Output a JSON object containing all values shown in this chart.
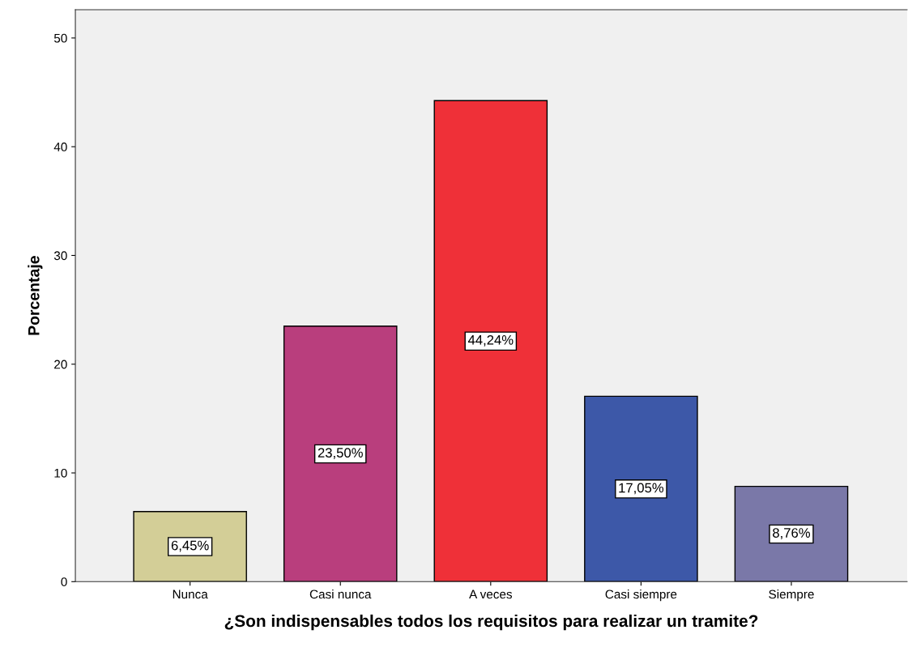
{
  "chart_data": {
    "type": "bar",
    "xlabel": "¿Son indispensables todos los requisitos para realizar un tramite?",
    "ylabel": "Porcentaje",
    "categories": [
      "Nunca",
      "Casi nunca",
      "A veces",
      "Casi siempre",
      "Siempre"
    ],
    "values": [
      6.45,
      23.5,
      44.24,
      17.05,
      8.76
    ],
    "colors": [
      "#d3ce97",
      "#b93e7d",
      "#ef3038",
      "#3d58a8",
      "#7a78a8"
    ],
    "value_labels": [
      "6,45%",
      "23,50%",
      "44,24%",
      "17,05%",
      "8,76%"
    ],
    "ylim": [
      0,
      52.6
    ],
    "yticks": [
      0,
      10,
      20,
      30,
      40,
      50
    ],
    "grid": false,
    "legend": false
  }
}
